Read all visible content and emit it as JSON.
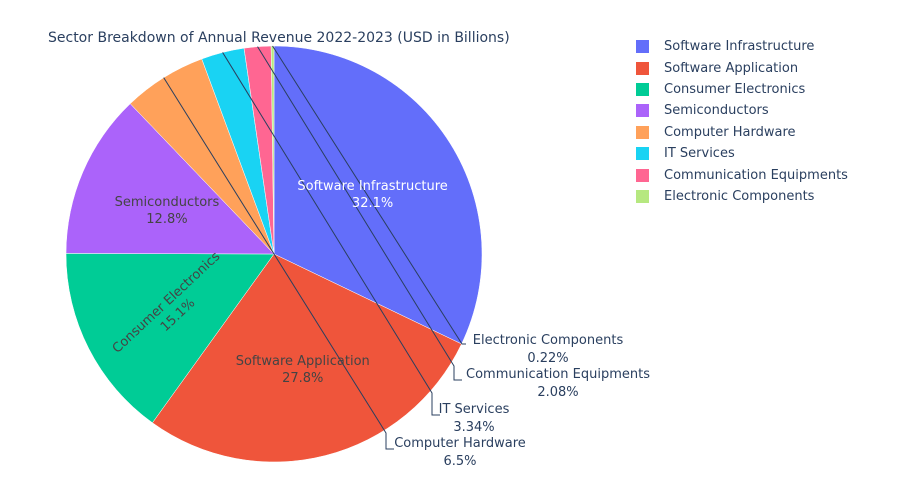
{
  "chart_data": {
    "type": "pie",
    "title": "Sector Breakdown of Annual Revenue 2022-2023 (USD in Billions)",
    "legend_position": "top-right",
    "slices": [
      {
        "label": "Software Infrastructure",
        "percent": 32.1,
        "percent_label": "32.1%",
        "color": "#636efa",
        "label_placement": "inside",
        "text_color": "#ffffff"
      },
      {
        "label": "Software Application",
        "percent": 27.8,
        "percent_label": "27.8%",
        "color": "#ef553b",
        "label_placement": "inside",
        "text_color": "#444444"
      },
      {
        "label": "Consumer Electronics",
        "percent": 15.1,
        "percent_label": "15.1%",
        "color": "#00cc96",
        "label_placement": "inside",
        "text_color": "#444444"
      },
      {
        "label": "Semiconductors",
        "percent": 12.8,
        "percent_label": "12.8%",
        "color": "#ab63fa",
        "label_placement": "inside",
        "text_color": "#444444"
      },
      {
        "label": "Computer Hardware",
        "percent": 6.5,
        "percent_label": "6.5%",
        "color": "#ffa15a",
        "label_placement": "outside",
        "text_color": "#2a3f5f"
      },
      {
        "label": "IT Services",
        "percent": 3.34,
        "percent_label": "3.34%",
        "color": "#19d3f3",
        "label_placement": "outside",
        "text_color": "#2a3f5f"
      },
      {
        "label": "Communication Equipments",
        "percent": 2.08,
        "percent_label": "2.08%",
        "color": "#ff6692",
        "label_placement": "outside",
        "text_color": "#2a3f5f"
      },
      {
        "label": "Electronic Components",
        "percent": 0.22,
        "percent_label": "0.22%",
        "color": "#b6e880",
        "label_placement": "outside",
        "text_color": "#2a3f5f"
      }
    ]
  }
}
